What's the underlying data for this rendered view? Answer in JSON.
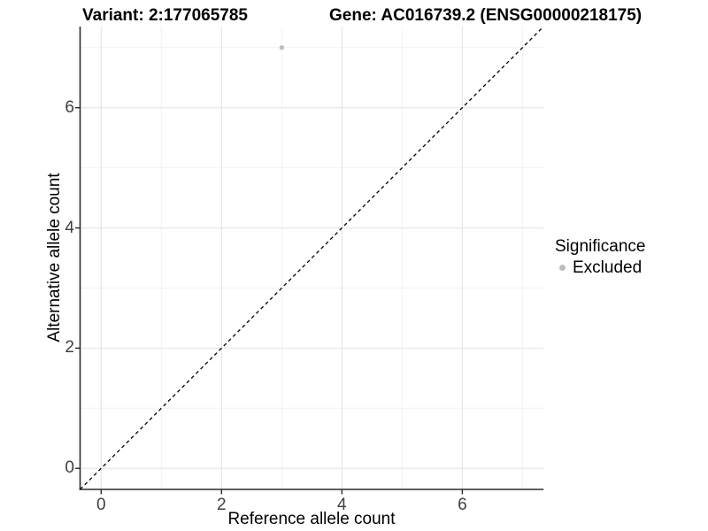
{
  "chart_data": {
    "type": "scatter",
    "title_left": "Variant: 2:177065785",
    "title_right": "Gene: AC016739.2 (ENSG00000218175)",
    "xlabel": "Reference allele count",
    "ylabel": "Alternative allele count",
    "xlim": [
      -0.35,
      7.35
    ],
    "ylim": [
      -0.35,
      7.35
    ],
    "x_ticks": [
      0,
      2,
      4,
      6
    ],
    "y_ticks": [
      0,
      2,
      4,
      6
    ],
    "minor_breaks": [
      1,
      3,
      5,
      7
    ],
    "grid": "major+minor",
    "legend_position": "right",
    "reference_line": {
      "kind": "identity",
      "slope": 1,
      "intercept": 0,
      "style": "dashed"
    },
    "points": [
      {
        "x": 3,
        "y": 7,
        "significance": "Excluded"
      }
    ],
    "legend": {
      "title": "Significance",
      "items": [
        {
          "label": "Excluded",
          "color": "#BEBEBE"
        }
      ]
    },
    "colors": {
      "background": "#FFFFFF",
      "grid_major": "#E4E4E4",
      "grid_minor": "#F2F2F2",
      "axis_line": "#2B2B2B",
      "tick_label": "#404040",
      "reference_line": "#000000",
      "point": "#BEBEBE"
    }
  }
}
